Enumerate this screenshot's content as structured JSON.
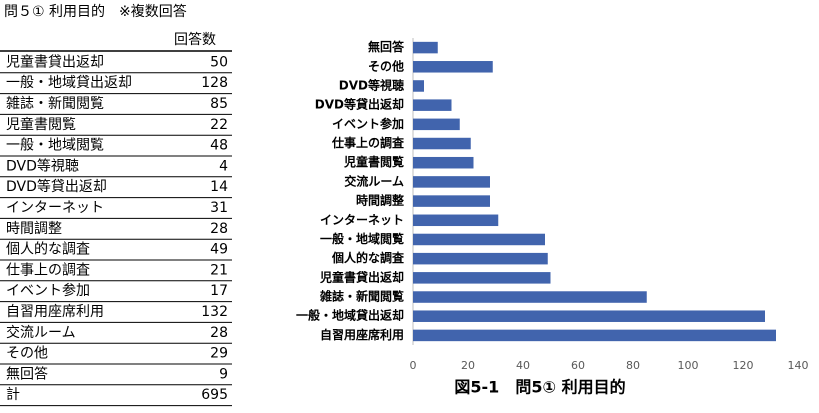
{
  "table": {
    "title": "問５① 利用目的　※複数回答",
    "header": "回答数",
    "rows": [
      [
        "児童書貸出返却",
        50
      ],
      [
        "一般・地域貸出返却",
        128
      ],
      [
        "雑誌・新聞閲覧",
        85
      ],
      [
        "児童書閲覧",
        22
      ],
      [
        "一般・地域閲覧",
        48
      ],
      [
        "DVD等視聴",
        4
      ],
      [
        "DVD等貸出返却",
        14
      ],
      [
        "インターネット",
        31
      ],
      [
        "時間調整",
        28
      ],
      [
        "個人的な調査",
        49
      ],
      [
        "仕事上の調査",
        21
      ],
      [
        "イベント参加",
        17
      ],
      [
        "自習用座席利用",
        132
      ],
      [
        "交流ルーム",
        28
      ],
      [
        "その他",
        29
      ],
      [
        "無回答",
        9
      ],
      [
        "計",
        695
      ]
    ]
  },
  "chart_data": {
    "type": "barh",
    "title": "図5-1　問5① 利用目的",
    "categories": [
      "無回答",
      "その他",
      "DVD等視聴",
      "DVD等貸出返却",
      "イベント参加",
      "仕事上の調査",
      "児童書閲覧",
      "交流ルーム",
      "時間調整",
      "インターネット",
      "一般・地域閲覧",
      "個人的な調査",
      "児童書貸出返却",
      "雑誌・新聞閲覧",
      "一般・地域貸出返却",
      "自習用座席利用"
    ],
    "values": [
      9,
      29,
      4,
      14,
      17,
      21,
      22,
      28,
      28,
      31,
      48,
      49,
      50,
      85,
      128,
      132
    ],
    "color": "#4164ad",
    "xlim": [
      0,
      140
    ],
    "xticks": [
      0,
      20,
      40,
      60,
      80,
      100,
      120,
      140
    ],
    "grid": false
  }
}
